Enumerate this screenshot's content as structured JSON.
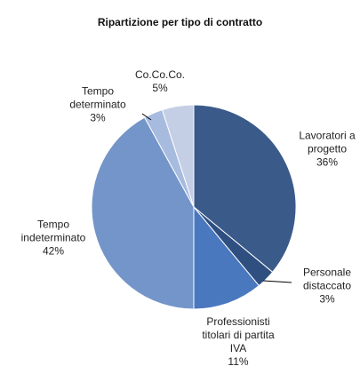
{
  "chart_data": {
    "type": "pie",
    "title": "Ripartizione per tipo di contratto",
    "categories": [
      "Lavoratori a progetto",
      "Personale distaccato",
      "Professionisti titolari di partita IVA",
      "Tempo indeterminato",
      "Tempo determinato",
      "Co.Co.Co."
    ],
    "values": [
      36,
      3,
      11,
      42,
      3,
      5
    ],
    "value_labels": [
      "36%",
      "3%",
      "11%",
      "42%",
      "3%",
      "5%"
    ],
    "colors": [
      "#3a5a8a",
      "#2e4f80",
      "#4a78bf",
      "#7395c9",
      "#a7bbdf",
      "#c4cfe5"
    ]
  }
}
